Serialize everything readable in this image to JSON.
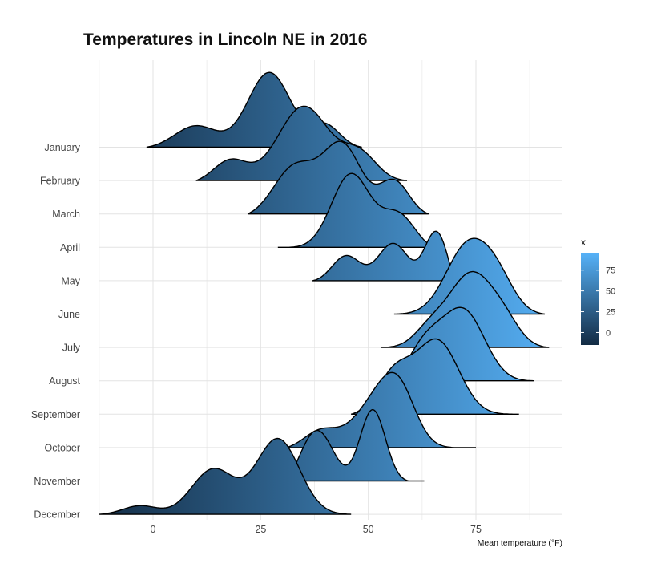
{
  "chart_data": {
    "type": "ridgeline",
    "title": "Temperatures in Lincoln NE in 2016",
    "xlabel": "Mean temperature (°F)",
    "ylabel": "",
    "xlim": [
      -15,
      95
    ],
    "x_ticks": [
      0,
      25,
      50,
      75
    ],
    "grid": true,
    "categories": [
      "January",
      "February",
      "March",
      "April",
      "May",
      "June",
      "July",
      "August",
      "September",
      "October",
      "November",
      "December"
    ],
    "legend": {
      "title": "x",
      "position": "right",
      "ticks": [
        0,
        25,
        50,
        75
      ],
      "range": [
        -15,
        95
      ],
      "colors": [
        "#132B43",
        "#56B1F7"
      ]
    },
    "series": [
      {
        "month": "January",
        "x_range": [
          -1.5,
          48.5
        ],
        "peaks": [
          [
            10,
            0.3,
            5
          ],
          [
            27,
            1.0,
            5
          ],
          [
            40,
            0.3,
            3.5
          ]
        ]
      },
      {
        "month": "February",
        "x_range": [
          10,
          59
        ],
        "peaks": [
          [
            18,
            0.3,
            4
          ],
          [
            35,
            1.0,
            6
          ],
          [
            48,
            0.35,
            4
          ]
        ]
      },
      {
        "month": "March",
        "x_range": [
          22,
          64
        ],
        "peaks": [
          [
            33,
            0.65,
            5
          ],
          [
            44,
            0.9,
            4.5
          ],
          [
            56,
            0.45,
            3.5
          ]
        ]
      },
      {
        "month": "April",
        "x_range": [
          29,
          65
        ],
        "peaks": [
          [
            46,
            0.95,
            4.5
          ],
          [
            57,
            0.45,
            4
          ]
        ]
      },
      {
        "month": "May",
        "x_range": [
          37,
          70
        ],
        "peaks": [
          [
            45,
            0.45,
            3.5
          ],
          [
            56,
            0.75,
            4
          ],
          [
            66,
            1.0,
            3
          ]
        ]
      },
      {
        "month": "June",
        "x_range": [
          56,
          91
        ],
        "peaks": [
          [
            73,
            1.0,
            5
          ],
          [
            80,
            0.45,
            4
          ]
        ]
      },
      {
        "month": "July",
        "x_range": [
          53,
          92
        ],
        "peaks": [
          [
            64,
            0.2,
            3.5
          ],
          [
            74,
            1.0,
            5.5
          ],
          [
            82,
            0.2,
            3.5
          ]
        ]
      },
      {
        "month": "August",
        "x_range": [
          55,
          88.5
        ],
        "peaks": [
          [
            63,
            0.5,
            4
          ],
          [
            72,
            1.0,
            5
          ]
        ]
      },
      {
        "month": "September",
        "x_range": [
          46,
          85
        ],
        "peaks": [
          [
            56,
            0.55,
            4
          ],
          [
            66,
            1.0,
            5
          ]
        ]
      },
      {
        "month": "October",
        "x_range": [
          31,
          75
        ],
        "peaks": [
          [
            39,
            0.35,
            4
          ],
          [
            51,
            0.75,
            5
          ],
          [
            57,
            1.0,
            4
          ]
        ]
      },
      {
        "month": "November",
        "x_range": [
          31,
          63
        ],
        "peaks": [
          [
            38,
            0.8,
            4
          ],
          [
            51,
            1.0,
            3
          ]
        ]
      },
      {
        "month": "December",
        "x_range": [
          -12.5,
          46
        ],
        "peaks": [
          [
            -3,
            0.12,
            4
          ],
          [
            14,
            0.6,
            5
          ],
          [
            29,
            1.0,
            5
          ]
        ]
      }
    ]
  }
}
